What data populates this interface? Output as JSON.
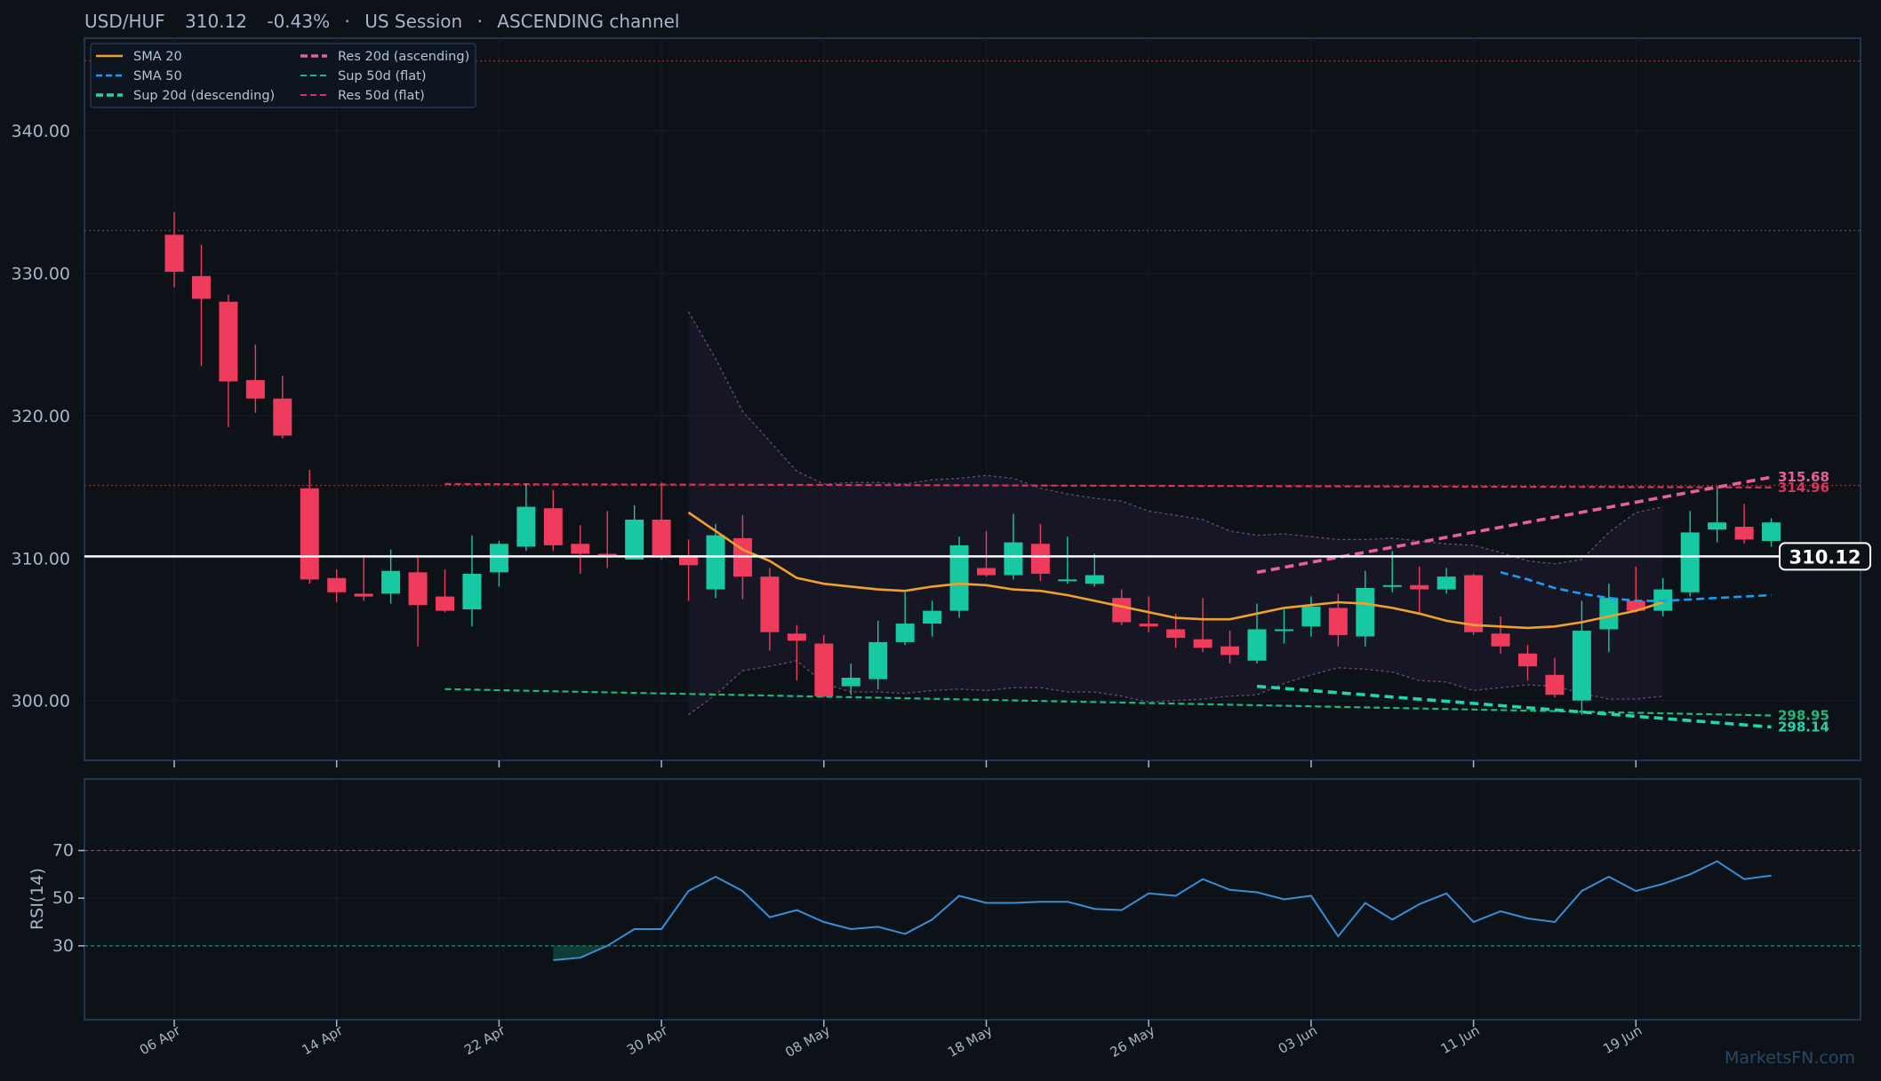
{
  "header": {
    "pair": "USD/HUF",
    "price": "310.12",
    "change": "-0.43%",
    "session": "US Session",
    "channel": "ASCENDING channel"
  },
  "watermark": "MarketsFN.com",
  "colors": {
    "background": "#0d1118",
    "up": "#17c9a2",
    "down": "#ef3b5c",
    "sma20": "#f0a02c",
    "sma50": "#1c9df5",
    "sup20": "#22d6ab",
    "sup50": "#1fb877",
    "res20": "#e8609a",
    "res50": "#d6335e",
    "rsi": "#3a8ed4",
    "band": "#6e4a78",
    "price_line": "#ffffff"
  },
  "chart_data": [
    {
      "type": "candlestick",
      "ylim": [
        295.8,
        346.5
      ],
      "yticks": [
        "300.00",
        "310.00",
        "320.00",
        "330.00",
        "340.00"
      ],
      "ytick_values": [
        300,
        310,
        320,
        330,
        340
      ],
      "xticks": [
        "06 Apr",
        "14 Apr",
        "22 Apr",
        "30 Apr",
        "08 May",
        "18 May",
        "26 May",
        "03 Jun",
        "11 Jun",
        "19 Jun"
      ],
      "xtick_index": [
        0,
        6,
        12,
        18,
        24,
        30,
        36,
        42,
        48,
        54
      ],
      "ohlc": [
        [
          332.7,
          334.3,
          329.0,
          330.1
        ],
        [
          329.8,
          332.0,
          323.5,
          328.2
        ],
        [
          328.0,
          328.5,
          319.2,
          322.4
        ],
        [
          322.5,
          325.0,
          320.2,
          321.2
        ],
        [
          321.2,
          322.8,
          318.4,
          318.6
        ],
        [
          314.9,
          316.2,
          308.2,
          308.5
        ],
        [
          308.6,
          309.2,
          306.9,
          307.6
        ],
        [
          307.5,
          310.2,
          307.0,
          307.3
        ],
        [
          307.5,
          310.6,
          306.8,
          309.1
        ],
        [
          309.0,
          310.2,
          303.8,
          306.7
        ],
        [
          307.3,
          309.2,
          306.2,
          306.3
        ],
        [
          306.4,
          311.6,
          305.2,
          308.9
        ],
        [
          309.0,
          311.2,
          308.0,
          311.0
        ],
        [
          310.8,
          315.2,
          310.5,
          313.6
        ],
        [
          313.5,
          314.8,
          310.5,
          310.9
        ],
        [
          311.0,
          312.3,
          308.9,
          310.3
        ],
        [
          310.3,
          313.3,
          309.3,
          310.1
        ],
        [
          309.9,
          313.7,
          309.9,
          312.7
        ],
        [
          312.7,
          315.3,
          309.9,
          310.2
        ],
        [
          310.1,
          311.3,
          307.0,
          309.5
        ],
        [
          307.8,
          312.4,
          307.2,
          311.6
        ],
        [
          311.4,
          313.0,
          307.1,
          308.7
        ],
        [
          308.7,
          309.3,
          303.5,
          304.8
        ],
        [
          304.7,
          305.3,
          301.4,
          304.2
        ],
        [
          304.0,
          304.6,
          300.2,
          300.3
        ],
        [
          301.0,
          302.6,
          300.4,
          301.6
        ],
        [
          301.5,
          305.6,
          300.8,
          304.1
        ],
        [
          304.1,
          307.6,
          303.9,
          305.4
        ],
        [
          305.4,
          307.0,
          304.5,
          306.3
        ],
        [
          306.3,
          311.5,
          305.8,
          310.9
        ],
        [
          309.3,
          311.9,
          308.7,
          308.8
        ],
        [
          308.8,
          313.1,
          308.5,
          311.1
        ],
        [
          311.0,
          312.4,
          308.4,
          308.9
        ],
        [
          308.4,
          311.5,
          308.2,
          308.5
        ],
        [
          308.2,
          310.3,
          308.0,
          308.8
        ],
        [
          307.2,
          307.8,
          305.3,
          305.5
        ],
        [
          305.4,
          307.3,
          304.8,
          305.2
        ],
        [
          305.0,
          306.1,
          303.7,
          304.4
        ],
        [
          304.3,
          307.2,
          303.4,
          303.7
        ],
        [
          303.8,
          304.9,
          302.6,
          303.2
        ],
        [
          302.8,
          306.8,
          302.6,
          305.0
        ],
        [
          305.0,
          306.4,
          304.0,
          305.0
        ],
        [
          305.2,
          307.3,
          304.5,
          306.6
        ],
        [
          306.5,
          307.5,
          303.8,
          304.6
        ],
        [
          304.5,
          309.1,
          303.8,
          307.9
        ],
        [
          308.1,
          310.5,
          307.6,
          308.1
        ],
        [
          308.1,
          309.4,
          306.2,
          307.8
        ],
        [
          307.8,
          309.3,
          307.5,
          308.7
        ],
        [
          308.8,
          308.9,
          304.6,
          304.8
        ],
        [
          304.7,
          305.9,
          303.3,
          303.8
        ],
        [
          303.3,
          303.9,
          301.4,
          302.4
        ],
        [
          301.8,
          303.0,
          300.2,
          300.4
        ],
        [
          300.0,
          307.0,
          299.0,
          304.9
        ],
        [
          305.0,
          308.2,
          303.4,
          307.2
        ],
        [
          307.0,
          309.4,
          306.2,
          306.3
        ],
        [
          306.3,
          308.6,
          305.9,
          307.8
        ],
        [
          307.6,
          313.3,
          307.3,
          311.8
        ],
        [
          312.0,
          314.9,
          311.1,
          312.5
        ],
        [
          312.2,
          313.8,
          311.0,
          311.3
        ],
        [
          311.2,
          312.8,
          310.8,
          312.5
        ]
      ],
      "series": [
        {
          "name": "SMA 20",
          "start": 19,
          "values": [
            313.2,
            311.9,
            310.6,
            309.8,
            308.6,
            308.2,
            308.0,
            307.8,
            307.7,
            308.0,
            308.2,
            308.1,
            307.8,
            307.7,
            307.4,
            307.0,
            306.6,
            306.2,
            305.8,
            305.7,
            305.7,
            306.1,
            306.5,
            306.7,
            306.9,
            306.8,
            306.5,
            306.1,
            305.6,
            305.3,
            305.2,
            305.1,
            305.2,
            305.5,
            305.9,
            306.3,
            306.9
          ]
        },
        {
          "name": "SMA 50",
          "start": 49,
          "values": [
            309.0,
            308.5,
            307.9,
            307.5,
            307.2,
            307.0,
            307.0,
            307.1,
            307.2,
            307.3,
            307.4
          ]
        },
        {
          "name": "Sup 20d (descending)",
          "start": 40,
          "values": [
            301.0,
            298.14
          ]
        },
        {
          "name": "Res 20d (ascending)",
          "start": 40,
          "values": [
            309.0,
            315.68
          ]
        },
        {
          "name": "Sup 50d (flat)",
          "start": 10,
          "values": [
            300.8,
            298.95
          ]
        },
        {
          "name": "Res 50d (flat)",
          "start": 10,
          "values": [
            315.2,
            314.96
          ]
        }
      ],
      "band": {
        "start": 19,
        "upper": [
          327.3,
          324.0,
          320.3,
          318.2,
          316.1,
          315.2,
          315.3,
          315.3,
          315.2,
          315.5,
          315.6,
          315.8,
          315.6,
          314.9,
          314.5,
          314.2,
          314.0,
          313.3,
          313.0,
          312.7,
          311.9,
          311.6,
          311.7,
          311.5,
          311.3,
          311.3,
          311.4,
          311.2,
          311.0,
          310.9,
          310.4,
          309.8,
          309.6,
          309.9,
          311.8,
          313.2,
          313.6
        ],
        "lower": [
          299.0,
          300.4,
          302.1,
          302.4,
          302.8,
          301.2,
          300.6,
          300.6,
          300.5,
          300.7,
          300.8,
          300.7,
          300.9,
          300.9,
          300.6,
          300.6,
          300.3,
          299.9,
          300.0,
          300.1,
          300.3,
          300.4,
          301.2,
          301.8,
          302.3,
          302.2,
          302.0,
          301.4,
          301.3,
          300.7,
          300.9,
          301.1,
          301.0,
          300.5,
          300.1,
          300.1,
          300.3
        ]
      },
      "levels": [
        315.1,
        333.0,
        344.9
      ],
      "last_price": 310.12,
      "last_price_label": "310.12",
      "level_labels": [
        {
          "text": "315.68",
          "value": 315.68,
          "color": "#e8609a"
        },
        {
          "text": "314.96",
          "value": 314.96,
          "color": "#d6335e"
        },
        {
          "text": "298.95",
          "value": 298.95,
          "color": "#1fb877"
        },
        {
          "text": "298.14",
          "value": 298.14,
          "color": "#22d6ab"
        }
      ]
    },
    {
      "type": "line",
      "ylabel": "RSI(14)",
      "ylim": [
        -1,
        100
      ],
      "yticks": [
        "30",
        "50",
        "70"
      ],
      "ytick_values": [
        30,
        50,
        70
      ],
      "overbought": 70,
      "oversold": 30,
      "series": [
        {
          "name": "RSI(14)",
          "start": 14,
          "values": [
            24,
            25,
            30,
            37,
            37,
            53,
            59,
            53,
            42,
            45,
            40,
            37,
            38,
            35,
            41,
            51,
            48,
            48,
            48.5,
            48.5,
            45.5,
            45,
            52,
            51,
            58,
            53.5,
            52.5,
            49.5,
            51,
            34,
            48,
            41,
            47.5,
            52,
            40,
            44.5,
            41.5,
            40,
            53,
            59,
            53,
            56,
            60,
            65.5,
            58,
            59.5
          ]
        }
      ]
    }
  ]
}
